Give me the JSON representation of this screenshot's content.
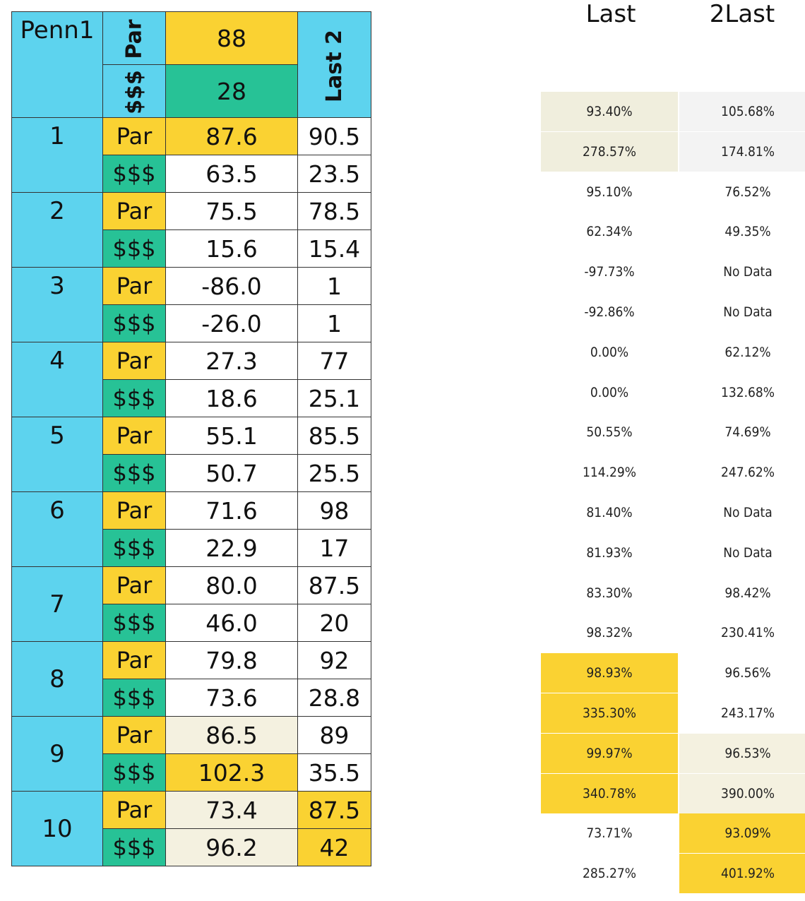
{
  "header": {
    "track_label": "Penn1",
    "par_label": "Par",
    "money_label": "$$$",
    "par_value": "88",
    "money_value": "28",
    "last2_label": "Last 2"
  },
  "races": [
    {
      "num": "1",
      "rows": [
        {
          "type": "Par",
          "value": "87.6",
          "last": "90.5",
          "type_color": "#fad232",
          "value_color": "#fad232",
          "last_color": "#ffffff"
        },
        {
          "type": "$$$",
          "value": "63.5",
          "last": "23.5",
          "type_color": "#27c296",
          "value_color": "#ffffff",
          "last_color": "#ffffff"
        }
      ]
    },
    {
      "num": "2",
      "rows": [
        {
          "type": "Par",
          "value": "75.5",
          "last": "78.5",
          "type_color": "#fad232",
          "value_color": "#ffffff",
          "last_color": "#ffffff"
        },
        {
          "type": "$$$",
          "value": "15.6",
          "last": "15.4",
          "type_color": "#27c296",
          "value_color": "#ffffff",
          "last_color": "#ffffff"
        }
      ]
    },
    {
      "num": "3",
      "rows": [
        {
          "type": "Par",
          "value": "-86.0",
          "last": "1",
          "type_color": "#fad232",
          "value_color": "#ffffff",
          "last_color": "#ffffff"
        },
        {
          "type": "$$$",
          "value": "-26.0",
          "last": "1",
          "type_color": "#27c296",
          "value_color": "#ffffff",
          "last_color": "#ffffff"
        }
      ]
    },
    {
      "num": "4",
      "rows": [
        {
          "type": "Par",
          "value": "27.3",
          "last": "77",
          "type_color": "#fad232",
          "value_color": "#ffffff",
          "last_color": "#ffffff"
        },
        {
          "type": "$$$",
          "value": "18.6",
          "last": "25.1",
          "type_color": "#27c296",
          "value_color": "#ffffff",
          "last_color": "#ffffff"
        }
      ]
    },
    {
      "num": "5",
      "rows": [
        {
          "type": "Par",
          "value": "55.1",
          "last": "85.5",
          "type_color": "#fad232",
          "value_color": "#ffffff",
          "last_color": "#ffffff"
        },
        {
          "type": "$$$",
          "value": "50.7",
          "last": "25.5",
          "type_color": "#27c296",
          "value_color": "#ffffff",
          "last_color": "#ffffff"
        }
      ]
    },
    {
      "num": "6",
      "rows": [
        {
          "type": "Par",
          "value": "71.6",
          "last": "98",
          "type_color": "#fad232",
          "value_color": "#ffffff",
          "last_color": "#ffffff"
        },
        {
          "type": "$$$",
          "value": "22.9",
          "last": "17",
          "type_color": "#27c296",
          "value_color": "#ffffff",
          "last_color": "#ffffff"
        }
      ]
    },
    {
      "num": "7",
      "rows": [
        {
          "type": "Par",
          "value": "80.0",
          "last": "87.5",
          "type_color": "#fad232",
          "value_color": "#ffffff",
          "last_color": "#ffffff"
        },
        {
          "type": "$$$",
          "value": "46.0",
          "last": "20",
          "type_color": "#27c296",
          "value_color": "#ffffff",
          "last_color": "#ffffff"
        }
      ]
    },
    {
      "num": "8",
      "rows": [
        {
          "type": "Par",
          "value": "79.8",
          "last": "92",
          "type_color": "#fad232",
          "value_color": "#ffffff",
          "last_color": "#ffffff"
        },
        {
          "type": "$$$",
          "value": "73.6",
          "last": "28.8",
          "type_color": "#27c296",
          "value_color": "#ffffff",
          "last_color": "#ffffff"
        }
      ]
    },
    {
      "num": "9",
      "rows": [
        {
          "type": "Par",
          "value": "86.5",
          "last": "89",
          "type_color": "#fad232",
          "value_color": "#f4f1e0",
          "last_color": "#ffffff"
        },
        {
          "type": "$$$",
          "value": "102.3",
          "last": "35.5",
          "type_color": "#27c296",
          "value_color": "#fad232",
          "last_color": "#ffffff"
        }
      ]
    },
    {
      "num": "10",
      "rows": [
        {
          "type": "Par",
          "value": "73.4",
          "last": "87.5",
          "type_color": "#fad232",
          "value_color": "#f4f1e0",
          "last_color": "#fad232"
        },
        {
          "type": "$$$",
          "value": "96.2",
          "last": "42",
          "type_color": "#27c296",
          "value_color": "#f4f1e0",
          "last_color": "#fad232"
        }
      ]
    }
  ],
  "right_table": {
    "headers": [
      "Last",
      "2Last"
    ],
    "rows": [
      {
        "last": "93.40%",
        "last2": "105.68%",
        "last_color": "#f0eedd",
        "last2_color": "#f3f3f3"
      },
      {
        "last": "278.57%",
        "last2": "174.81%",
        "last_color": "#f0eedd",
        "last2_color": "#f3f3f3"
      },
      {
        "last": "95.10%",
        "last2": "76.52%",
        "last_color": "#ffffff",
        "last2_color": "#ffffff"
      },
      {
        "last": "62.34%",
        "last2": "49.35%",
        "last_color": "#ffffff",
        "last2_color": "#ffffff"
      },
      {
        "last": "-97.73%",
        "last2": "No Data",
        "last_color": "#ffffff",
        "last2_color": "#ffffff"
      },
      {
        "last": "-92.86%",
        "last2": "No Data",
        "last_color": "#ffffff",
        "last2_color": "#ffffff"
      },
      {
        "last": "0.00%",
        "last2": "62.12%",
        "last_color": "#ffffff",
        "last2_color": "#ffffff"
      },
      {
        "last": "0.00%",
        "last2": "132.68%",
        "last_color": "#ffffff",
        "last2_color": "#ffffff"
      },
      {
        "last": "50.55%",
        "last2": "74.69%",
        "last_color": "#ffffff",
        "last2_color": "#ffffff"
      },
      {
        "last": "114.29%",
        "last2": "247.62%",
        "last_color": "#ffffff",
        "last2_color": "#ffffff"
      },
      {
        "last": "81.40%",
        "last2": "No Data",
        "last_color": "#ffffff",
        "last2_color": "#ffffff"
      },
      {
        "last": "81.93%",
        "last2": "No Data",
        "last_color": "#ffffff",
        "last2_color": "#ffffff"
      },
      {
        "last": "83.30%",
        "last2": "98.42%",
        "last_color": "#ffffff",
        "last2_color": "#ffffff"
      },
      {
        "last": "98.32%",
        "last2": "230.41%",
        "last_color": "#ffffff",
        "last2_color": "#ffffff"
      },
      {
        "last": "98.93%",
        "last2": "96.56%",
        "last_color": "#fad232",
        "last2_color": "#ffffff"
      },
      {
        "last": "335.30%",
        "last2": "243.17%",
        "last_color": "#fad232",
        "last2_color": "#ffffff"
      },
      {
        "last": "99.97%",
        "last2": "96.53%",
        "last_color": "#fad232",
        "last2_color": "#f4f1e0"
      },
      {
        "last": "340.78%",
        "last2": "390.00%",
        "last_color": "#fad232",
        "last2_color": "#f4f1e0"
      },
      {
        "last": "73.71%",
        "last2": "93.09%",
        "last_color": "#ffffff",
        "last2_color": "#fad232"
      },
      {
        "last": "285.27%",
        "last2": "401.92%",
        "last_color": "#ffffff",
        "last2_color": "#fad232"
      }
    ]
  },
  "colors": {
    "cyan": "#5dd3ee",
    "yellow": "#fad232",
    "green": "#27c296",
    "cream": "#f4f1e0"
  }
}
